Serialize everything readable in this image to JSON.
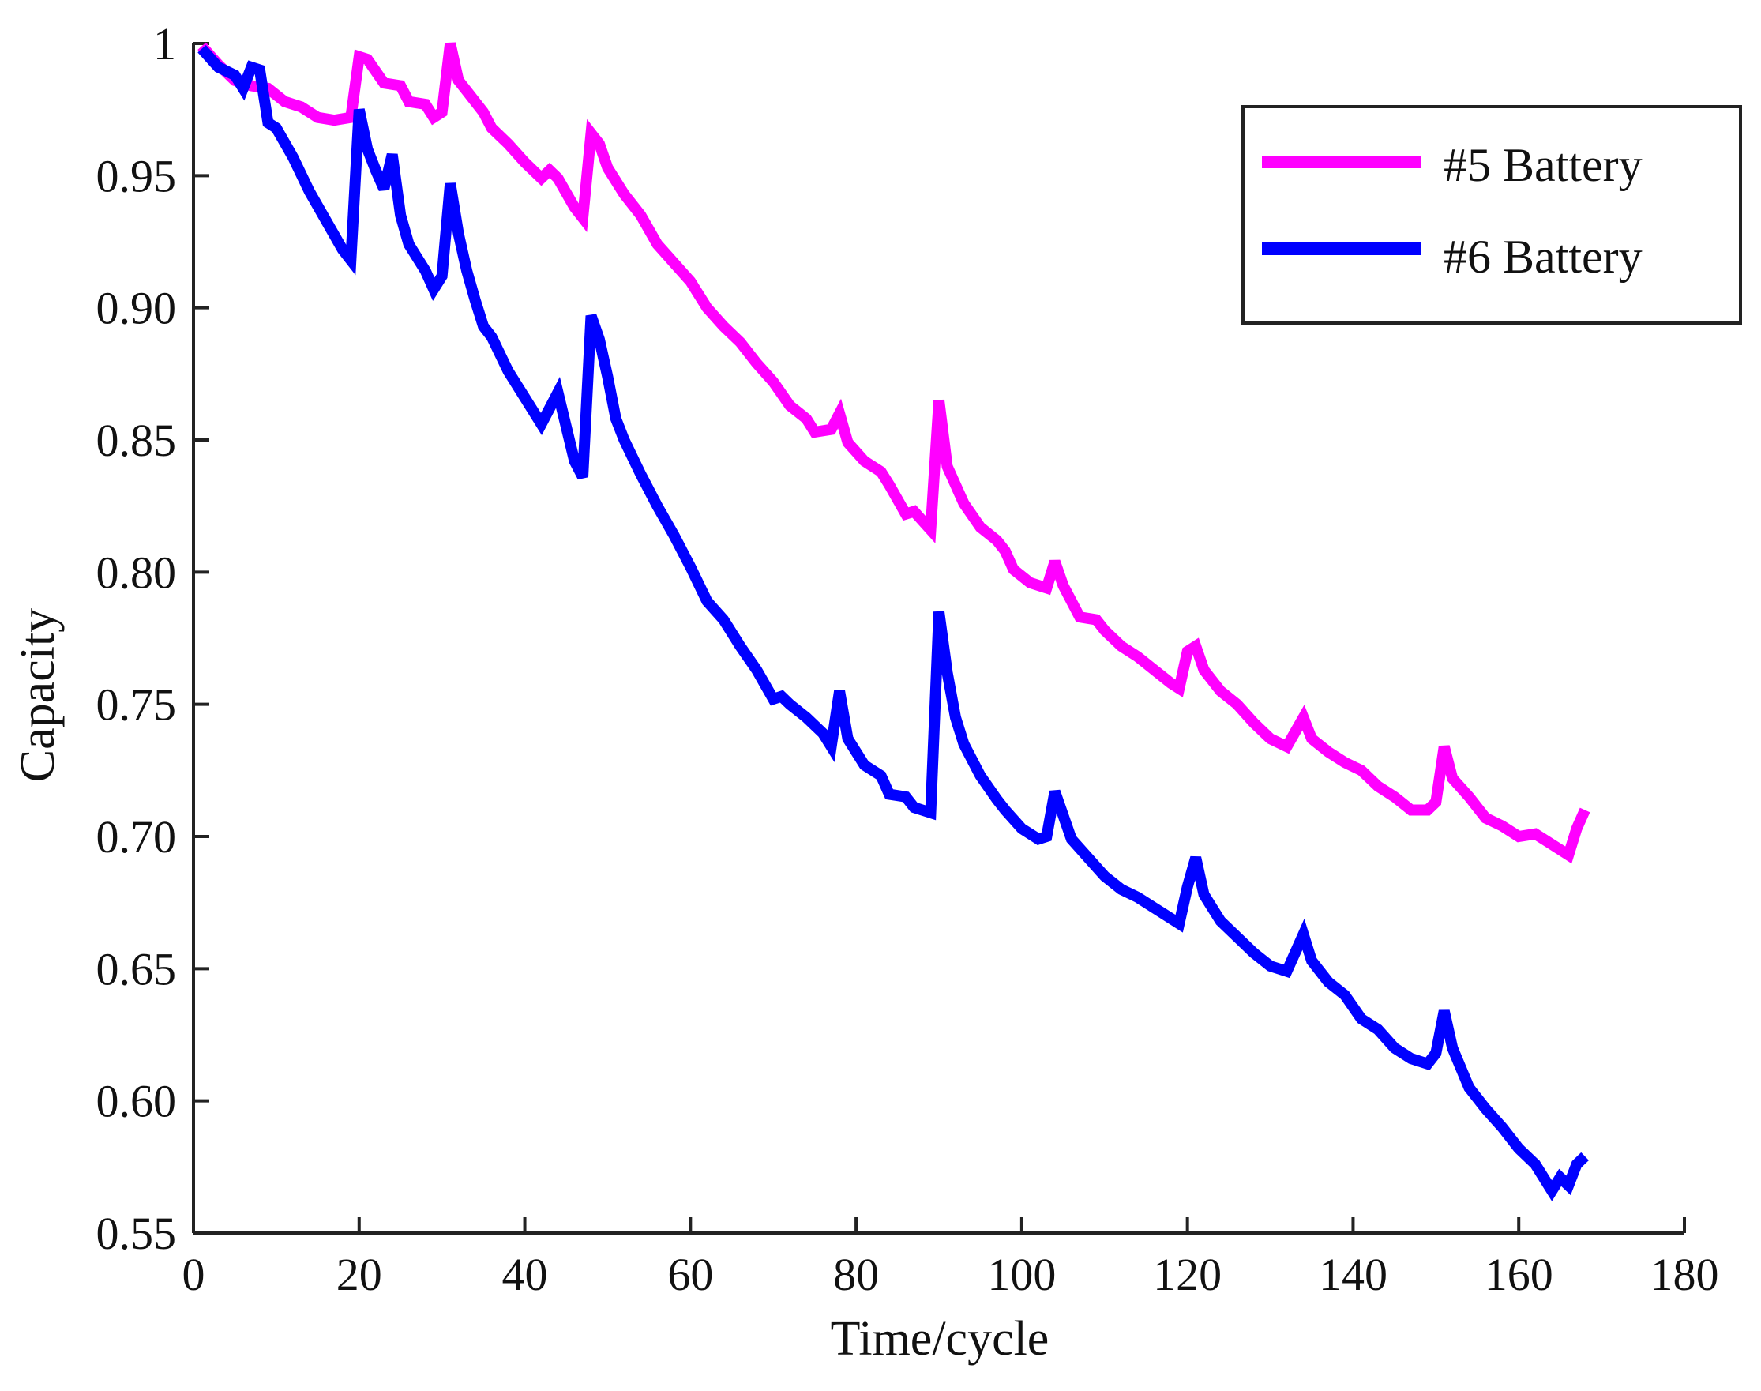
{
  "chart_data": {
    "type": "line",
    "title": "",
    "xlabel": "Time/cycle",
    "ylabel": "Capacity",
    "xlim": [
      0,
      180
    ],
    "ylim": [
      0.55,
      1.0
    ],
    "xticks": [
      0,
      20,
      40,
      60,
      80,
      100,
      120,
      140,
      160,
      180
    ],
    "xtick_labels": [
      "0",
      "20",
      "40",
      "60",
      "80",
      "100",
      "120",
      "140",
      "160",
      "180"
    ],
    "yticks": [
      0.55,
      0.6,
      0.65,
      0.7,
      0.75,
      0.8,
      0.85,
      0.9,
      0.95,
      1.0
    ],
    "ytick_labels": [
      "0.55",
      "0.60",
      "0.65",
      "0.70",
      "0.75",
      "0.80",
      "0.85",
      "0.90",
      "0.95",
      "1"
    ],
    "grid": false,
    "legend_position": "top-right",
    "series": [
      {
        "name": "#5 Battery",
        "color": "#ff00ff",
        "x": [
          1,
          3,
          5,
          7,
          9,
          11,
          13,
          15,
          17,
          19,
          20,
          21,
          23,
          25,
          26,
          28,
          29,
          30,
          31,
          32,
          33,
          35,
          36,
          38,
          40,
          42,
          43,
          44,
          46,
          47,
          48,
          49,
          50,
          52,
          54,
          56,
          58,
          60,
          62,
          64,
          66,
          68,
          70,
          72,
          74,
          75,
          77,
          78,
          79,
          81,
          83,
          84,
          86,
          87,
          89,
          90,
          91,
          93,
          95,
          97,
          98,
          99,
          101,
          103,
          104,
          105,
          107,
          109,
          110,
          112,
          114,
          116,
          118,
          119,
          120,
          121,
          122,
          124,
          126,
          128,
          130,
          132,
          134,
          135,
          137,
          139,
          141,
          143,
          145,
          147,
          149,
          150,
          151,
          152,
          154,
          156,
          158,
          160,
          162,
          164,
          166,
          167,
          168
        ],
        "values": [
          0.999,
          0.992,
          0.986,
          0.984,
          0.983,
          0.978,
          0.976,
          0.972,
          0.971,
          0.972,
          0.995,
          0.994,
          0.985,
          0.984,
          0.978,
          0.977,
          0.972,
          0.974,
          1.0,
          0.986,
          0.982,
          0.974,
          0.968,
          0.962,
          0.955,
          0.949,
          0.952,
          0.949,
          0.938,
          0.934,
          0.966,
          0.962,
          0.953,
          0.943,
          0.935,
          0.924,
          0.917,
          0.91,
          0.9,
          0.893,
          0.887,
          0.879,
          0.872,
          0.863,
          0.858,
          0.853,
          0.854,
          0.86,
          0.849,
          0.842,
          0.838,
          0.833,
          0.822,
          0.823,
          0.816,
          0.865,
          0.84,
          0.826,
          0.817,
          0.812,
          0.808,
          0.801,
          0.796,
          0.794,
          0.804,
          0.795,
          0.783,
          0.782,
          0.778,
          0.772,
          0.768,
          0.763,
          0.758,
          0.756,
          0.77,
          0.772,
          0.763,
          0.755,
          0.75,
          0.743,
          0.737,
          0.734,
          0.745,
          0.737,
          0.732,
          0.728,
          0.725,
          0.719,
          0.715,
          0.71,
          0.71,
          0.713,
          0.734,
          0.722,
          0.715,
          0.707,
          0.704,
          0.7,
          0.701,
          0.697,
          0.693,
          0.703,
          0.71
        ]
      },
      {
        "name": "#6 Battery",
        "color": "#0000ff",
        "x": [
          1,
          3,
          5,
          6,
          7,
          8,
          9,
          10,
          12,
          14,
          16,
          18,
          19,
          20,
          21,
          22,
          23,
          24,
          25,
          26,
          28,
          29,
          30,
          31,
          32,
          33,
          34,
          35,
          36,
          38,
          40,
          42,
          44,
          45,
          46,
          47,
          48,
          49,
          50,
          51,
          52,
          54,
          56,
          58,
          60,
          62,
          64,
          66,
          68,
          70,
          71,
          72,
          74,
          76,
          77,
          78,
          79,
          81,
          83,
          84,
          86,
          87,
          89,
          90,
          91,
          92,
          93,
          95,
          97,
          98,
          100,
          102,
          103,
          104,
          106,
          108,
          110,
          112,
          114,
          116,
          118,
          119,
          120,
          121,
          122,
          124,
          126,
          128,
          130,
          132,
          134,
          135,
          137,
          139,
          141,
          143,
          145,
          147,
          149,
          150,
          151,
          152,
          154,
          156,
          158,
          160,
          162,
          164,
          165,
          166,
          167,
          168
        ],
        "values": [
          0.998,
          0.991,
          0.988,
          0.983,
          0.991,
          0.99,
          0.97,
          0.968,
          0.957,
          0.944,
          0.933,
          0.922,
          0.918,
          0.975,
          0.96,
          0.952,
          0.945,
          0.958,
          0.935,
          0.924,
          0.914,
          0.907,
          0.912,
          0.947,
          0.928,
          0.914,
          0.903,
          0.893,
          0.889,
          0.876,
          0.866,
          0.856,
          0.868,
          0.855,
          0.842,
          0.836,
          0.897,
          0.888,
          0.874,
          0.858,
          0.85,
          0.837,
          0.825,
          0.814,
          0.802,
          0.789,
          0.782,
          0.772,
          0.763,
          0.752,
          0.753,
          0.75,
          0.745,
          0.739,
          0.734,
          0.755,
          0.737,
          0.727,
          0.723,
          0.716,
          0.715,
          0.711,
          0.709,
          0.785,
          0.762,
          0.745,
          0.735,
          0.723,
          0.714,
          0.71,
          0.703,
          0.699,
          0.7,
          0.717,
          0.699,
          0.692,
          0.685,
          0.68,
          0.677,
          0.673,
          0.669,
          0.667,
          0.681,
          0.692,
          0.678,
          0.668,
          0.662,
          0.656,
          0.651,
          0.649,
          0.663,
          0.653,
          0.645,
          0.64,
          0.631,
          0.627,
          0.62,
          0.616,
          0.614,
          0.618,
          0.634,
          0.62,
          0.605,
          0.597,
          0.59,
          0.582,
          0.576,
          0.566,
          0.571,
          0.568,
          0.576,
          0.579
        ]
      }
    ]
  }
}
